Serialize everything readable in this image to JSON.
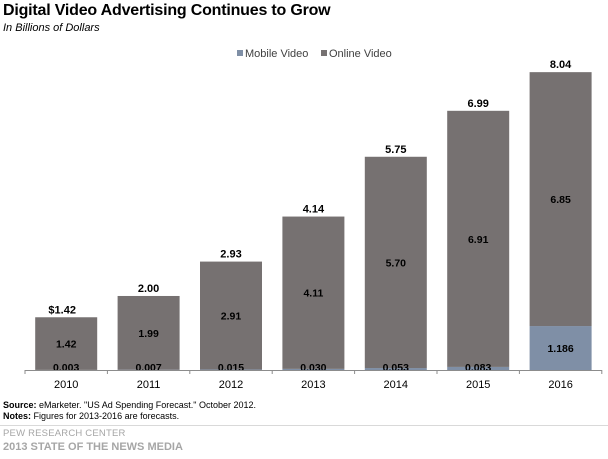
{
  "header": {
    "title": "Digital Video Advertising  Continues to Grow",
    "subtitle": "In Billions  of Dollars"
  },
  "colors": {
    "online": "#767171",
    "mobile": "#7f8fa6",
    "axis": "#8c8c8c"
  },
  "chart_data": {
    "type": "bar",
    "stacked": true,
    "categories": [
      "2010",
      "2011",
      "2012",
      "2013",
      "2014",
      "2015",
      "2016"
    ],
    "series": [
      {
        "name": "Mobile Video",
        "values": [
          0.003,
          0.007,
          0.015,
          0.03,
          0.053,
          0.083,
          1.186
        ],
        "labels": [
          "0.003",
          "0.007",
          "0.015",
          "0.030",
          "0.053",
          "0.083",
          "1.186"
        ]
      },
      {
        "name": "Online Video",
        "values": [
          1.42,
          1.99,
          2.91,
          4.11,
          5.7,
          6.91,
          6.85
        ],
        "labels": [
          "1.42",
          "1.99",
          "2.91",
          "4.11",
          "5.70",
          "6.91",
          "6.85"
        ]
      }
    ],
    "totals": [
      1.42,
      2.0,
      2.93,
      4.14,
      5.75,
      6.99,
      8.04
    ],
    "total_labels": [
      "$1.42",
      "2.00",
      "2.93",
      "4.14",
      "5.75",
      "6.99",
      "8.04"
    ],
    "title": "Digital Video Advertising  Continues to Grow",
    "ylabel": "",
    "xlabel": "",
    "ylim": [
      0,
      8.04
    ],
    "grid": false,
    "legend": "top-center"
  },
  "footer": {
    "source_label": "Source:",
    "source_text": " eMarketer. \"US Ad Spending  Forecast.\" October 2012.",
    "notes_label": "Notes:",
    "notes_text": " Figures for 2013-2016  are forecasts.",
    "org": "PEW RESEARCH CENTER",
    "report": "2013 STATE OF THE NEWS MEDIA"
  }
}
